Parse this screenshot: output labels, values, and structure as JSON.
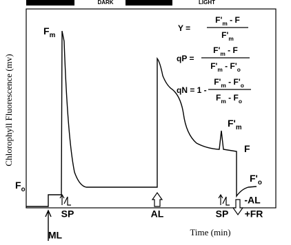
{
  "header": {
    "dark": "DARK",
    "light": "LIGHT"
  },
  "axes": {
    "y_label": "Chlorophyll Fluorescence (mv)",
    "x_label": "Time (min)"
  },
  "trace_labels": {
    "fm": [
      {
        "t": "F"
      },
      {
        "t": "m",
        "sub": true
      }
    ],
    "fm_prime": [
      {
        "t": "F'"
      },
      {
        "t": "m",
        "sub": true
      }
    ],
    "f": [
      {
        "t": "F"
      }
    ],
    "fo_prime": [
      {
        "t": "F'"
      },
      {
        "t": "o",
        "sub": true
      }
    ],
    "fo": [
      {
        "t": "F"
      },
      {
        "t": "o",
        "sub": true
      }
    ]
  },
  "events": {
    "ml": "ML",
    "sp1": "SP",
    "al": "AL",
    "sp2": "SP",
    "fr": "+FR",
    "minus_al": "-AL"
  },
  "equations": {
    "y": {
      "lhs": "Y =",
      "numerator": [
        {
          "t": "F'"
        },
        {
          "t": "m",
          "sub": true
        },
        {
          "t": " - F"
        }
      ],
      "denominator": [
        {
          "t": "F'"
        },
        {
          "t": "m",
          "sub": true
        }
      ]
    },
    "qp": {
      "lhs": "qP =",
      "numerator": [
        {
          "t": "F'"
        },
        {
          "t": "m",
          "sub": true
        },
        {
          "t": " - F"
        }
      ],
      "denominator": [
        {
          "t": "F'"
        },
        {
          "t": "m",
          "sub": true
        },
        {
          "t": " - F'"
        },
        {
          "t": "o",
          "sub": true
        }
      ]
    },
    "qn": {
      "lhs": "qN = 1 -",
      "numerator": [
        {
          "t": "F'"
        },
        {
          "t": "m",
          "sub": true
        },
        {
          "t": " - F'"
        },
        {
          "t": "o",
          "sub": true
        }
      ],
      "denominator": [
        {
          "t": "F"
        },
        {
          "t": "m",
          "sub": true
        },
        {
          "t": " - F"
        },
        {
          "t": "o",
          "sub": true
        }
      ]
    }
  }
}
